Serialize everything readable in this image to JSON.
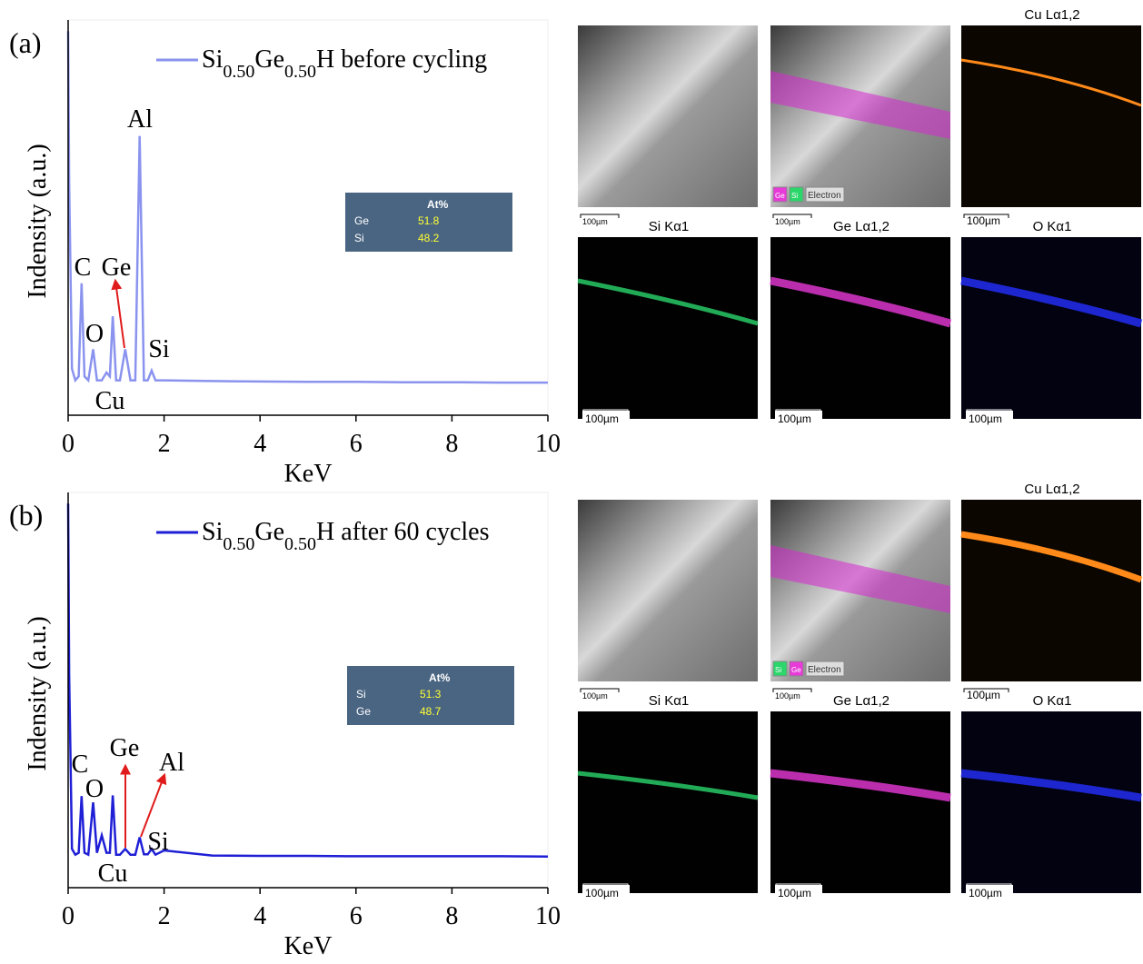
{
  "chart_data": [
    {
      "type": "line",
      "panel": "(a)",
      "xlabel": "KeV",
      "ylabel": "Indensity (a.u.)",
      "x": [
        0,
        0.02,
        0.08,
        0.15,
        0.22,
        0.28,
        0.34,
        0.42,
        0.52,
        0.6,
        0.7,
        0.8,
        0.87,
        0.93,
        1.0,
        1.08,
        1.19,
        1.3,
        1.4,
        1.49,
        1.58,
        1.66,
        1.74,
        1.82,
        2,
        3,
        4,
        5,
        6,
        7,
        8,
        9,
        10
      ],
      "series": [
        {
          "name": "Si0.50Ge0.50H before cycling",
          "color": "#8a93ee",
          "values": [
            99,
            60,
            12,
            9,
            10,
            34,
            10,
            9,
            17,
            9,
            9,
            11,
            10,
            25.5,
            9,
            9,
            17,
            9,
            9,
            72,
            9,
            9,
            11.5,
            9,
            9,
            8.8,
            8.7,
            8.6,
            8.6,
            8.5,
            8.5,
            8.4,
            8.4
          ]
        }
      ],
      "annotations": [
        "Al",
        "C",
        "Ge",
        "O",
        "Si",
        "Cu"
      ],
      "xlim": [
        0,
        10
      ],
      "xticks": [
        0,
        2,
        4,
        6,
        8,
        10
      ],
      "ylim": [
        0,
        100
      ],
      "inset": {
        "header": "At%",
        "rows": [
          [
            "Ge",
            51.8
          ],
          [
            "Si",
            48.2
          ]
        ]
      }
    },
    {
      "type": "line",
      "panel": "(b)",
      "xlabel": "KeV",
      "ylabel": "Indensity (a.u.)",
      "x": [
        0,
        0.02,
        0.08,
        0.15,
        0.22,
        0.28,
        0.34,
        0.42,
        0.52,
        0.6,
        0.7,
        0.8,
        0.87,
        0.93,
        1.0,
        1.08,
        1.19,
        1.3,
        1.4,
        1.49,
        1.58,
        1.66,
        1.74,
        1.82,
        2,
        3,
        4,
        5,
        6,
        7,
        8,
        9,
        10
      ],
      "series": [
        {
          "name": "Si0.50Ge0.50H after 60 cycles",
          "color": "#1f1fd6",
          "values": [
            99,
            55,
            10,
            8.5,
            9,
            23.6,
            9,
            8.5,
            22,
            9,
            13.5,
            9,
            9,
            23.8,
            8.5,
            8.5,
            10,
            8.5,
            8.5,
            13,
            8.6,
            8.6,
            10,
            8.5,
            9.6,
            8.3,
            8.2,
            8.2,
            8.1,
            8.1,
            8.1,
            8.1,
            8
          ]
        }
      ],
      "annotations": [
        "C",
        "Ge",
        "Al",
        "O",
        "Si",
        "Cu"
      ],
      "xlim": [
        0,
        10
      ],
      "xticks": [
        0,
        2,
        4,
        6,
        8,
        10
      ],
      "ylim": [
        0,
        100
      ],
      "inset": {
        "header": "At%",
        "rows": [
          [
            "Si",
            51.3
          ],
          [
            "Ge",
            48.7
          ]
        ]
      }
    }
  ],
  "maps": [
    {
      "labels": [
        "Cu Lα1,2",
        "Si Kα1",
        "Ge Lα1,2",
        "O Kα1"
      ],
      "scale_bar": "100µm",
      "legend": [
        "Ge",
        "Si",
        "Electron"
      ]
    },
    {
      "labels": [
        "Cu Lα1,2",
        "Si Kα1",
        "Ge Lα1,2",
        "O Kα1"
      ],
      "scale_bar": "100µm",
      "legend": [
        "Si",
        "Ge",
        "Electron"
      ]
    }
  ]
}
